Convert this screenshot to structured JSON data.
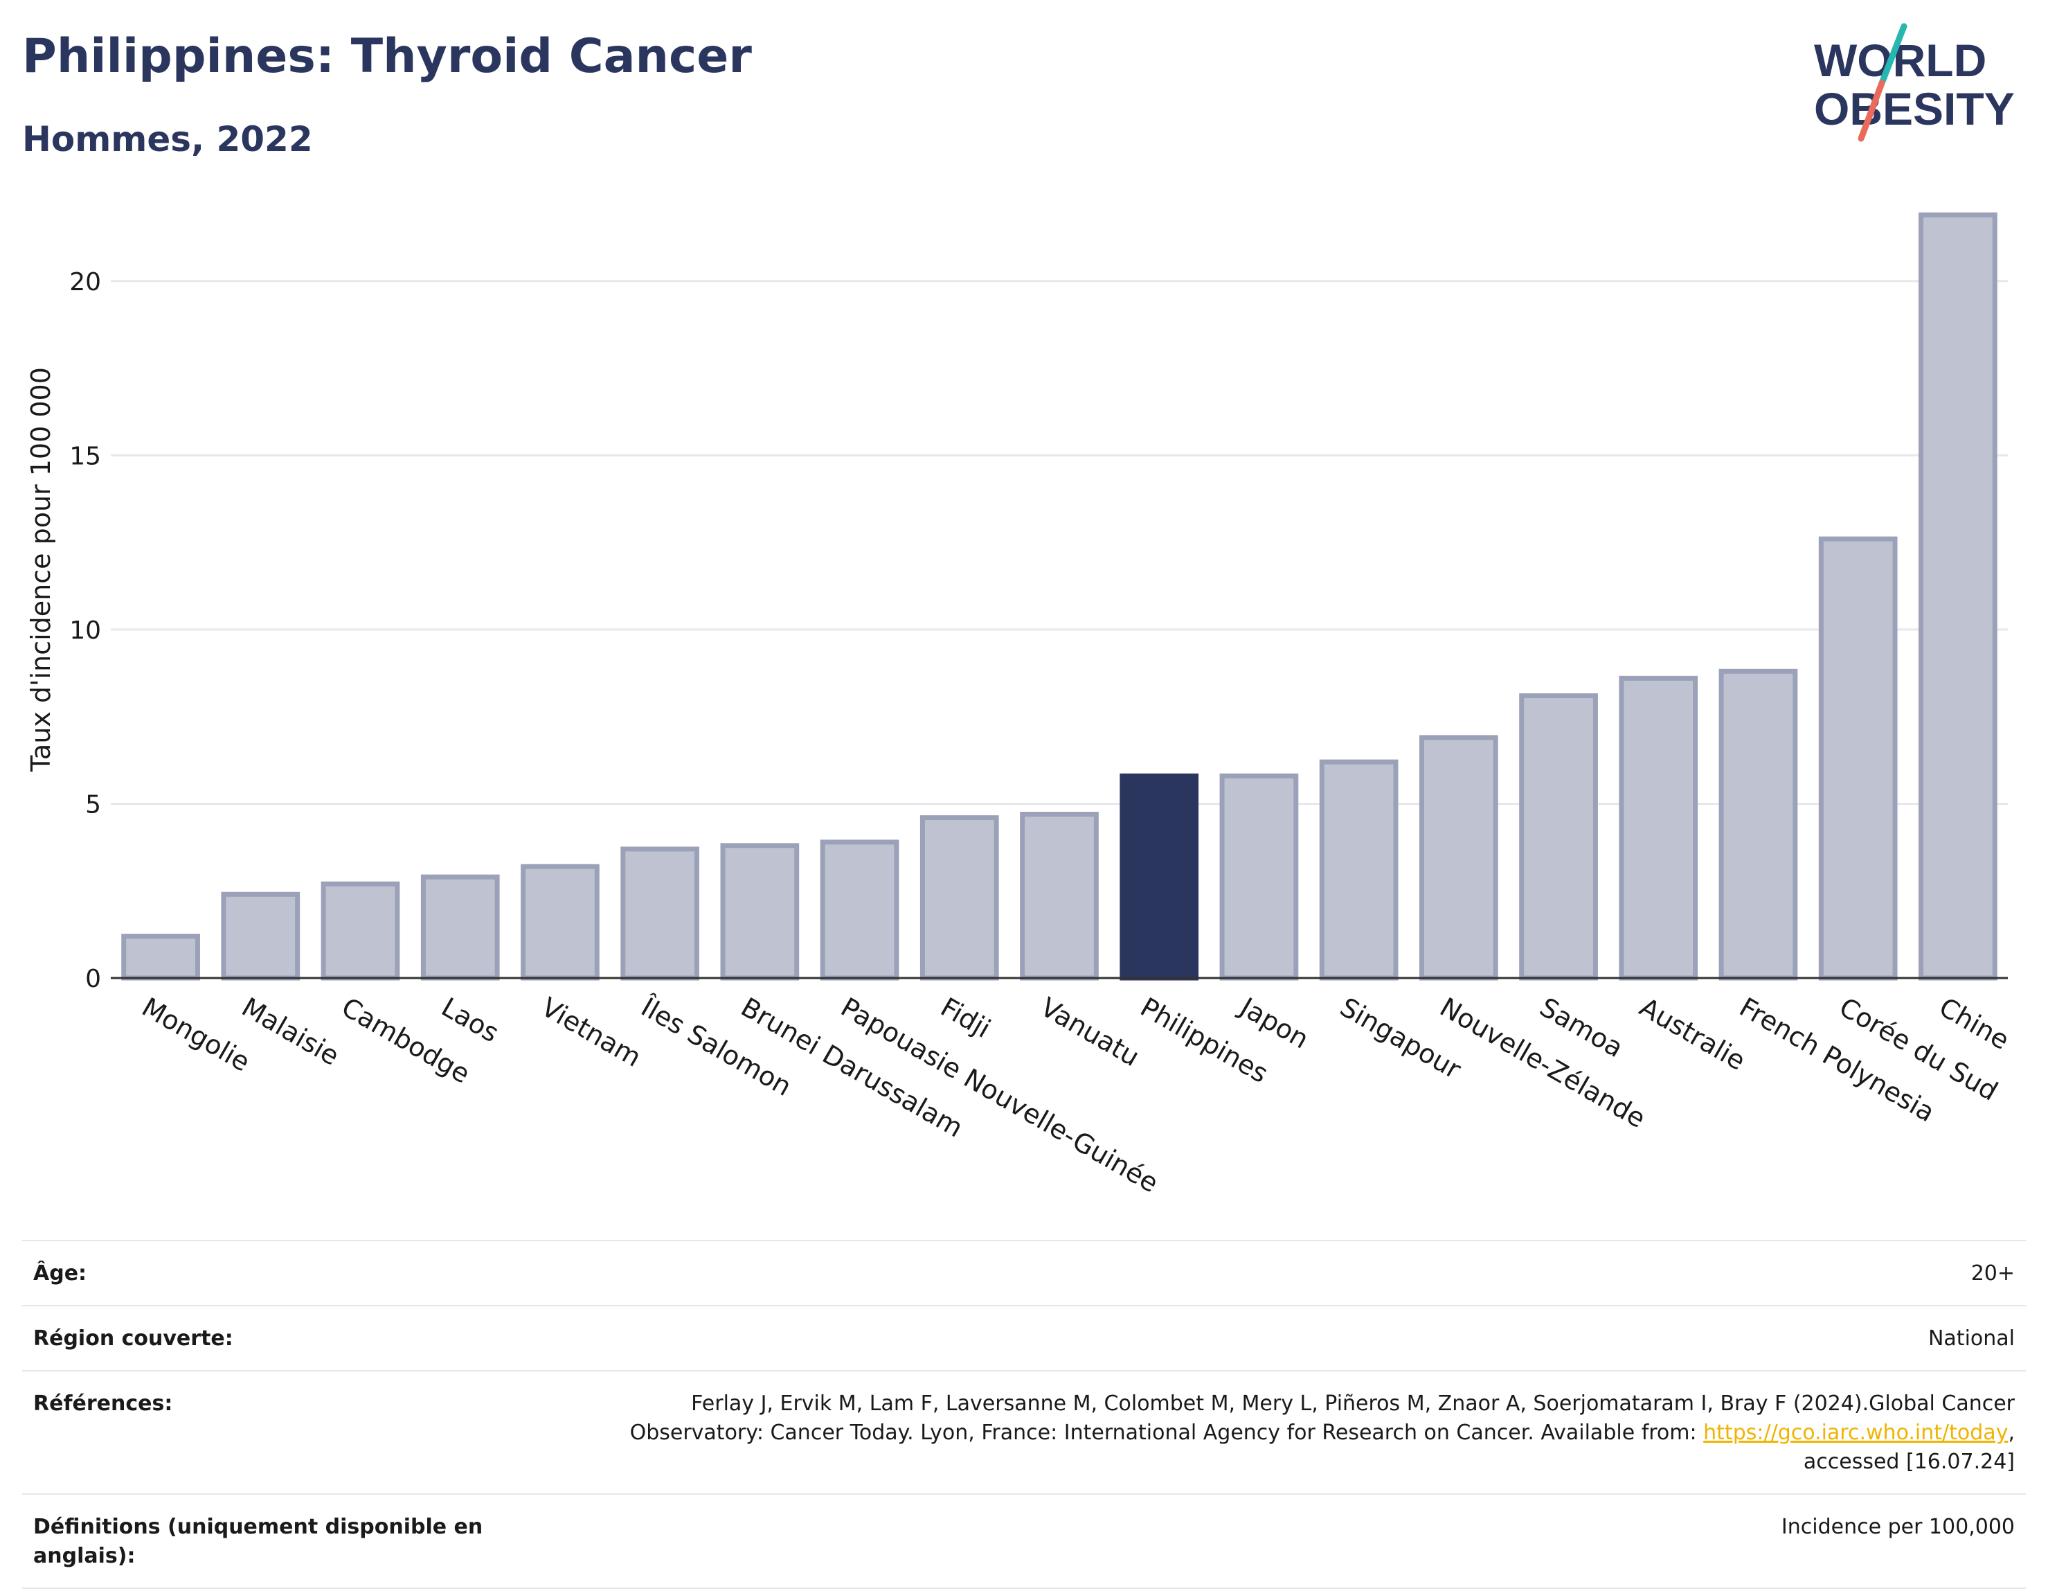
{
  "header": {
    "title": "Philippines: Thyroid Cancer",
    "subtitle": "Hommes, 2022"
  },
  "logo": {
    "line1": "WORLD",
    "line2": "OBESITY"
  },
  "colors": {
    "highlight": "#2b365f",
    "bar_fill": "#bfc3d1",
    "bar_stroke": "#9aa1b8",
    "logo_teal": "#27b6b0",
    "logo_coral": "#ea6a5c",
    "link": "#f0b400"
  },
  "chart_data": {
    "type": "bar",
    "ylabel": "Taux d'incidence pour 100 000",
    "ylim": [
      0,
      22.5
    ],
    "yticks": [
      0,
      5,
      10,
      15,
      20
    ],
    "highlight": "Philippines",
    "grid": true,
    "categories": [
      "Mongolie",
      "Malaisie",
      "Cambodge",
      "Laos",
      "Vietnam",
      "Îles Salomon",
      "Brunei Darussalam",
      "Papouasie Nouvelle-Guinée",
      "Fidji",
      "Vanuatu",
      "Philippines",
      "Japon",
      "Singapour",
      "Nouvelle-Zélande",
      "Samoa",
      "Australie",
      "French Polynesia",
      "Corée du Sud",
      "Chine"
    ],
    "values": [
      1.2,
      2.4,
      2.7,
      2.9,
      3.2,
      3.7,
      3.8,
      3.9,
      4.6,
      4.7,
      5.8,
      5.8,
      6.2,
      6.9,
      8.1,
      8.6,
      8.8,
      12.6,
      21.9
    ]
  },
  "info": {
    "age_label": "Âge:",
    "age_value": "20+",
    "region_label": "Région couverte:",
    "region_value": "National",
    "refs_label": "Références:",
    "refs_line1": "Ferlay J, Ervik M, Lam F, Laversanne M, Colombet M, Mery L, Piñeros M, Znaor A, Soerjomataram I, Bray F (2024).Global Cancer",
    "refs_line2": "Observatory: Cancer Today. Lyon, France: International Agency for Research on Cancer. Available from: ",
    "refs_link": "https://gco.iarc.who.int/today",
    "refs_line2_end": ",",
    "refs_line3": "accessed [16.07.24]",
    "defs_label": "Définitions (uniquement disponible en anglais):",
    "defs_value": "Incidence per 100,000"
  }
}
